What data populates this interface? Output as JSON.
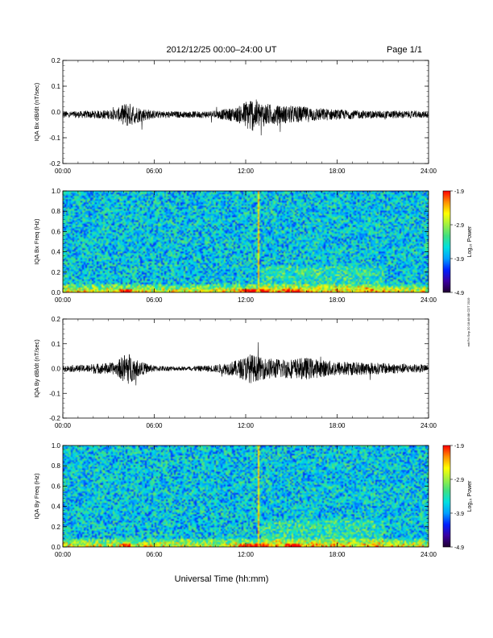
{
  "header": {
    "title": "2012/12/25  00:00–24:00 UT",
    "page": "Page 1/1"
  },
  "footer": {
    "xlabel": "Universal Time (hh:mm)",
    "side_note": "mit Fri Sep 20 18:48:08 CDT 2019"
  },
  "colors": {
    "trace": "#000000",
    "colormap": [
      "#200030",
      "#3a00a0",
      "#0020ff",
      "#00a0ff",
      "#00e0e0",
      "#40e080",
      "#a0f040",
      "#ffff00",
      "#ff9000",
      "#ff0000"
    ]
  },
  "chart_data": [
    {
      "type": "line",
      "id": "bx_wave",
      "ylabel": "IQA Bx dB/dt (nT/sec)",
      "xlim": [
        0,
        24
      ],
      "ylim": [
        -0.2,
        0.2
      ],
      "xticks": [
        "00:00",
        "06:00",
        "12:00",
        "18:00",
        "24:00"
      ],
      "yticks": [
        "-0.2",
        "-0.1",
        "0.0",
        "0.1",
        "0.2"
      ],
      "baseline": -0.01,
      "envelope": {
        "hours": [
          0,
          2,
          3.5,
          4.2,
          5,
          6,
          8,
          10,
          11.5,
          12.3,
          13,
          14,
          15,
          16,
          17,
          18,
          20,
          22,
          24
        ],
        "amplitude": [
          0.012,
          0.015,
          0.02,
          0.05,
          0.03,
          0.015,
          0.012,
          0.015,
          0.03,
          0.07,
          0.05,
          0.035,
          0.035,
          0.03,
          0.025,
          0.02,
          0.015,
          0.015,
          0.012
        ]
      }
    },
    {
      "type": "heatmap",
      "id": "bx_spec",
      "ylabel": "IQA Bx Freq (Hz)",
      "xlim": [
        0,
        24
      ],
      "ylim": [
        0,
        1.0
      ],
      "xticks": [
        "00:00",
        "06:00",
        "12:00",
        "18:00",
        "24:00"
      ],
      "yticks": [
        "0.0",
        "0.2",
        "0.4",
        "0.6",
        "0.8",
        "1.0"
      ],
      "colorbar": {
        "label": "Log₁₀ Power",
        "range": [
          -4.9,
          -1.9
        ],
        "ticks": [
          "-1.9",
          "-2.9",
          "-3.9",
          "-4.9"
        ]
      },
      "spike_hour": 12.75
    },
    {
      "type": "line",
      "id": "by_wave",
      "ylabel": "IQA By dB/dt (nT/sec)",
      "xlim": [
        0,
        24
      ],
      "ylim": [
        -0.2,
        0.2
      ],
      "xticks": [
        "00:00",
        "06:00",
        "12:00",
        "18:00",
        "24:00"
      ],
      "yticks": [
        "-0.2",
        "-0.1",
        "0.0",
        "0.1",
        "0.2"
      ],
      "baseline": 0.0,
      "envelope": {
        "hours": [
          0,
          1.5,
          2,
          3.5,
          4.2,
          5,
          6,
          8,
          10,
          11.5,
          12.3,
          13,
          14,
          15,
          16,
          17,
          18,
          20,
          22,
          24
        ],
        "amplitude": [
          0.012,
          0.015,
          0.02,
          0.025,
          0.07,
          0.03,
          0.012,
          0.008,
          0.015,
          0.035,
          0.06,
          0.045,
          0.04,
          0.04,
          0.045,
          0.035,
          0.03,
          0.025,
          0.02,
          0.015
        ]
      }
    },
    {
      "type": "heatmap",
      "id": "by_spec",
      "ylabel": "IQA By Freq (Hz)",
      "xlim": [
        0,
        24
      ],
      "ylim": [
        0,
        1.0
      ],
      "xticks": [
        "00:00",
        "06:00",
        "12:00",
        "18:00",
        "24:00"
      ],
      "yticks": [
        "0.0",
        "0.2",
        "0.4",
        "0.6",
        "0.8",
        "1.0"
      ],
      "colorbar": {
        "label": "Log₁₀ Power",
        "range": [
          -4.9,
          -1.9
        ],
        "ticks": [
          "-1.9",
          "-2.9",
          "-3.9",
          "-4.9"
        ]
      },
      "spike_hour": 12.75
    }
  ]
}
